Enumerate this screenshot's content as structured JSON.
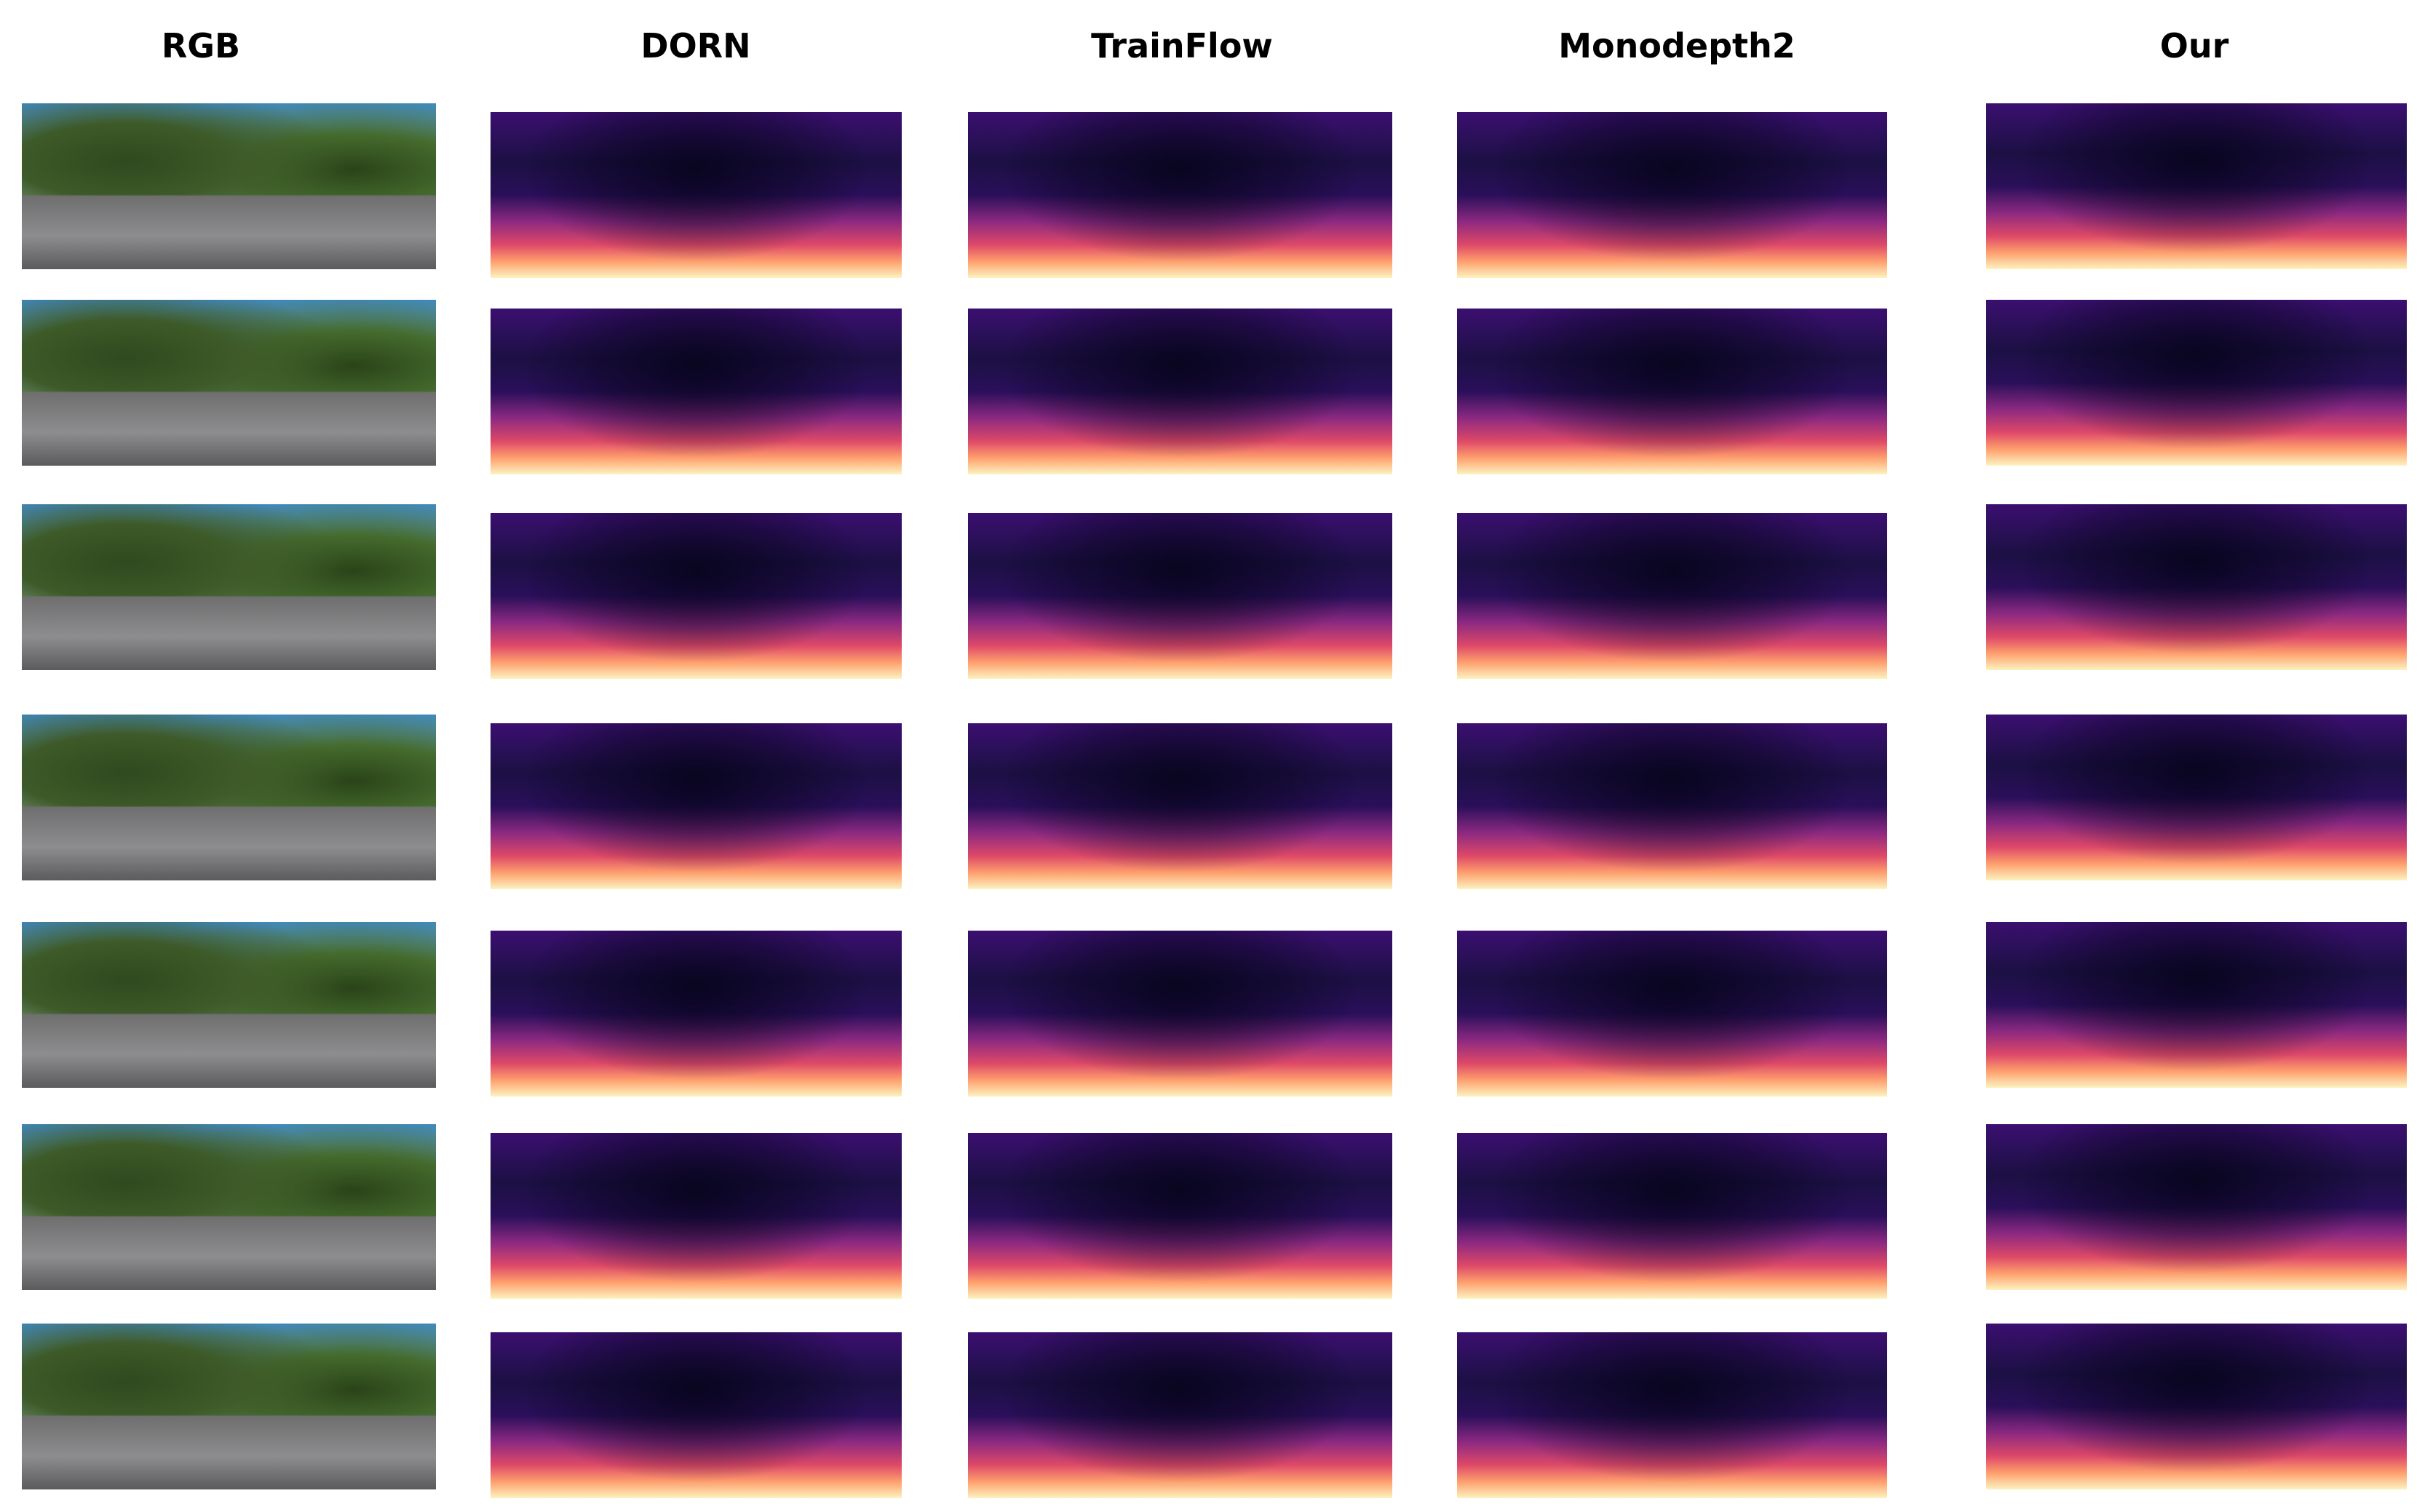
{
  "columns": [
    "RGB",
    "DORN",
    "TrainFlow",
    "Monodepth2",
    "Our"
  ]
}
